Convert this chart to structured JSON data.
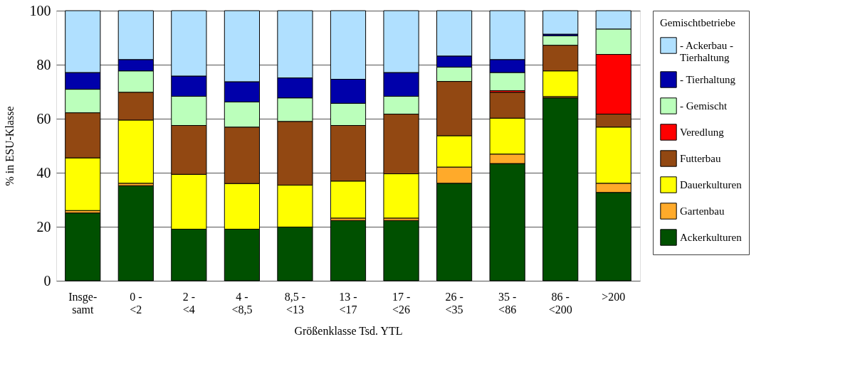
{
  "chart_data": {
    "type": "bar",
    "stacked": true,
    "xlabel": "Größenklasse Tsd. YTL",
    "ylabel": "% in ESU-Klasse",
    "legend_title": "Gemischtbetriebe",
    "legend": "right",
    "grid": "y",
    "categories": [
      "Insge-\nsamt",
      "0 -\n<2",
      "2 -\n<4",
      "4 -\n<8,5",
      "8,5 -\n<13",
      "13 -\n<17",
      "17 -\n<26",
      "26 -\n<35",
      "35 -\n<86",
      "86 -\n<200",
      ">200"
    ],
    "ylim": [
      0,
      100
    ],
    "yticks": [
      0,
      20,
      40,
      60,
      80,
      100
    ],
    "series": [
      {
        "name": "Ackerkulturen",
        "color": "#005000",
        "values": [
          25.1,
          35.2,
          19.1,
          19.1,
          19.9,
          22.3,
          22.3,
          36.1,
          43.4,
          67.7,
          32.7
        ]
      },
      {
        "name": "Gartenbau",
        "color": "#ffaa2a",
        "values": [
          0.9,
          0.9,
          null,
          null,
          null,
          0.9,
          0.9,
          6.0,
          3.5,
          0.5,
          3.4
        ]
      },
      {
        "name": "Dauerkulturen",
        "color": "#ffff00",
        "values": [
          19.5,
          23.4,
          20.3,
          16.9,
          15.5,
          13.7,
          16.4,
          11.6,
          13.3,
          9.5,
          20.8
        ]
      },
      {
        "name": "Futterbau",
        "color": "#924812",
        "values": [
          16.7,
          10.3,
          18.1,
          20.9,
          23.6,
          20.6,
          22.1,
          20.1,
          9.6,
          9.5,
          4.8
        ]
      },
      {
        "name": "Veredlung",
        "color": "#ff0000",
        "values": [
          null,
          null,
          null,
          null,
          null,
          null,
          null,
          null,
          0.6,
          null,
          22.1
        ]
      },
      {
        "name": "- Gemischt",
        "color": "#bbffbb",
        "values": [
          8.7,
          7.9,
          10.8,
          9.3,
          8.7,
          8.2,
          6.6,
          5.3,
          6.7,
          3.5,
          9.4
        ]
      },
      {
        "name": "- Tierhaltung",
        "color": "#0000aa",
        "values": [
          6.2,
          4.2,
          7.5,
          7.5,
          7.4,
          8.9,
          8.8,
          4.1,
          4.8,
          0.6,
          null
        ]
      },
      {
        "name": "- Ackerbau -\nTierhaltung",
        "color": "#b0e0ff",
        "values": [
          22.9,
          18.1,
          24.2,
          26.3,
          24.9,
          25.4,
          22.9,
          16.8,
          18.1,
          8.7,
          6.8
        ]
      }
    ]
  }
}
